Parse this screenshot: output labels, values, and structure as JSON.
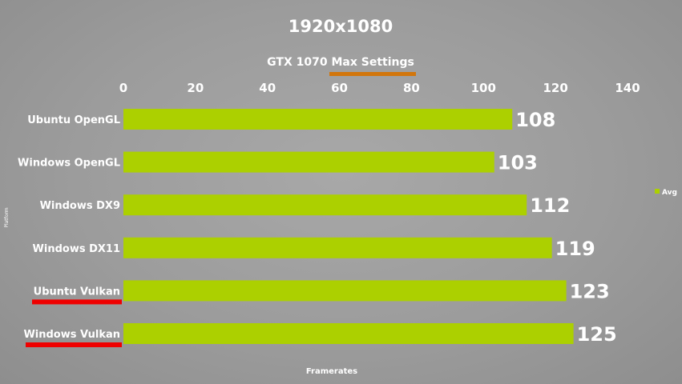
{
  "colors": {
    "bar": "#acd000",
    "subtitle_underline": "#d2760c",
    "category_underline": "#ef0000",
    "text": "#ffffff"
  },
  "chart_data": {
    "type": "bar",
    "orientation": "horizontal",
    "title": "1920x1080",
    "subtitle": "GTX 1070 Max Settings",
    "xlabel": "Framerates",
    "ylabel": "Platform",
    "xlim": [
      0,
      140
    ],
    "xticks": [
      0,
      20,
      40,
      60,
      80,
      100,
      120,
      140
    ],
    "tick_labels": [
      "0",
      "20",
      "40",
      "60",
      "80",
      "100",
      "120",
      "140"
    ],
    "axis_position": "top",
    "grid": false,
    "legend_position": "right",
    "categories": [
      "Ubuntu OpenGL",
      "Windows OpenGL",
      "Windows DX9",
      "Windows DX11",
      "Ubuntu Vulkan",
      "Windows Vulkan"
    ],
    "series": [
      {
        "name": "Avg",
        "values": [
          108,
          103,
          112,
          119,
          123,
          125
        ],
        "value_labels": [
          "108",
          "103",
          "112",
          "119",
          "123",
          "125"
        ]
      }
    ],
    "highlighted_categories": [
      "Ubuntu Vulkan",
      "Windows Vulkan"
    ]
  }
}
